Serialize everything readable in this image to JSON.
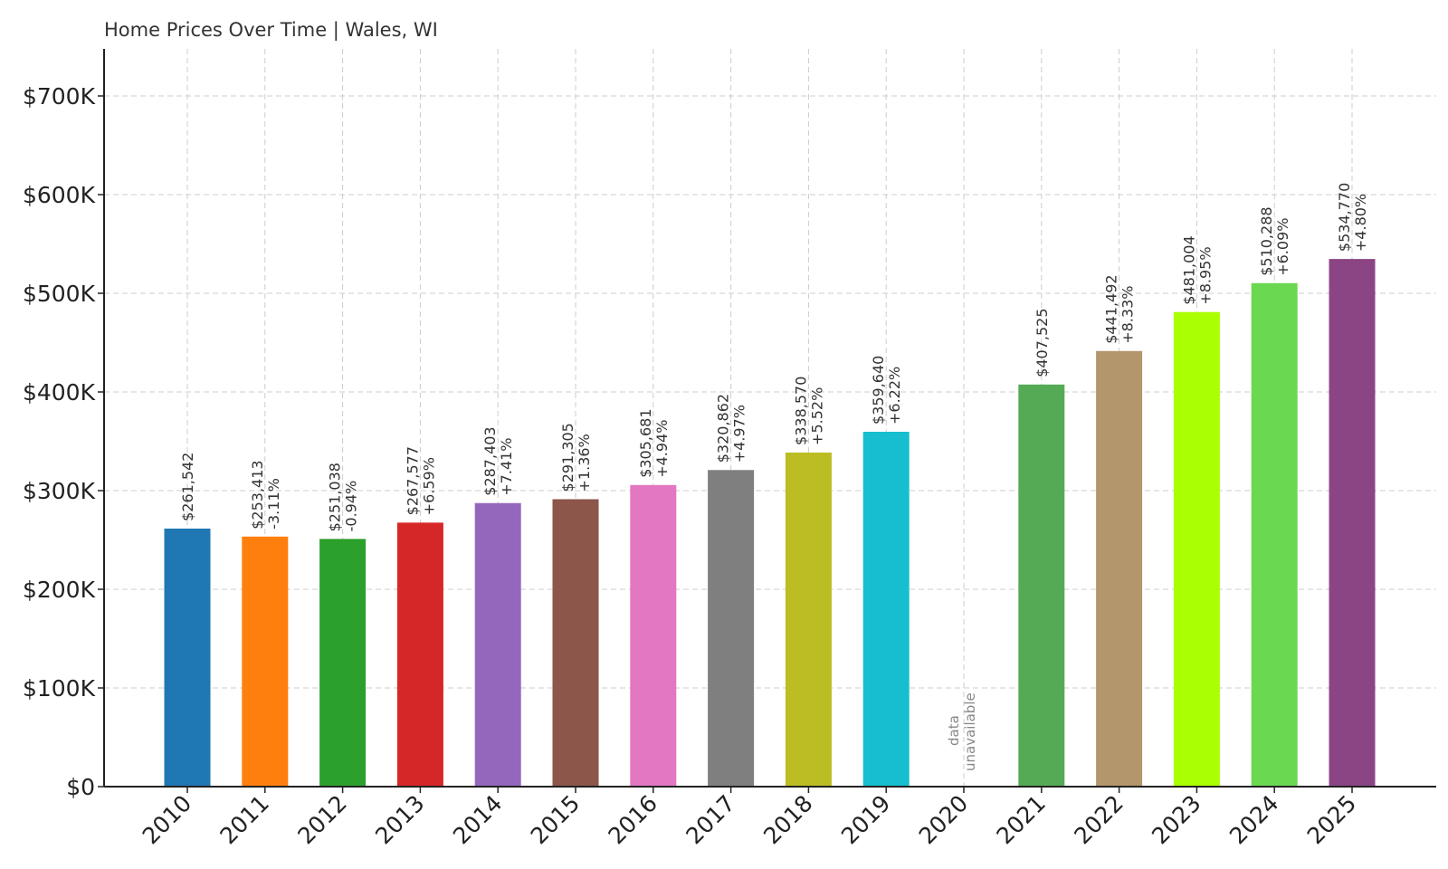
{
  "chart_data": {
    "type": "bar",
    "title": "Home Prices Over Time | Wales, WI",
    "xlabel": "",
    "ylabel": "",
    "ylim": [
      0,
      750000
    ],
    "y_ticks": [
      0,
      100000,
      200000,
      300000,
      400000,
      500000,
      600000,
      700000
    ],
    "y_tick_labels": [
      "$0",
      "$100K",
      "$200K",
      "$300K",
      "$400K",
      "$500K",
      "$600K",
      "$700K"
    ],
    "grid": true,
    "categories": [
      "2010",
      "2011",
      "2012",
      "2013",
      "2014",
      "2015",
      "2016",
      "2017",
      "2018",
      "2019",
      "2020",
      "2021",
      "2022",
      "2023",
      "2024",
      "2025"
    ],
    "values": [
      261542,
      253413,
      251038,
      267577,
      287403,
      291305,
      305681,
      320862,
      338570,
      359640,
      null,
      407525,
      441492,
      481004,
      510288,
      534770
    ],
    "value_labels": [
      "$261,542",
      "$253,413",
      "$251,038",
      "$267,577",
      "$287,403",
      "$291,305",
      "$305,681",
      "$320,862",
      "$338,570",
      "$359,640",
      "",
      "$407,525",
      "$441,492",
      "$481,004",
      "$510,288",
      "$534,770"
    ],
    "change_labels": [
      "",
      "-3.11%",
      "-0.94%",
      "+6.59%",
      "+7.41%",
      "+1.36%",
      "+4.94%",
      "+4.97%",
      "+5.52%",
      "+6.22%",
      "",
      "",
      "+8.33%",
      "+8.95%",
      "+6.09%",
      "+4.80%"
    ],
    "missing_note": [
      "data",
      "unavailable"
    ],
    "colors": [
      "#1f77b4",
      "#ff7f0e",
      "#2ca02c",
      "#d62728",
      "#9467bd",
      "#8c564b",
      "#e377c2",
      "#7f7f7f",
      "#bcbd22",
      "#17becf",
      "",
      "#55ab55",
      "#b3966b",
      "#aaff00",
      "#6ad850",
      "#8b4584"
    ]
  }
}
